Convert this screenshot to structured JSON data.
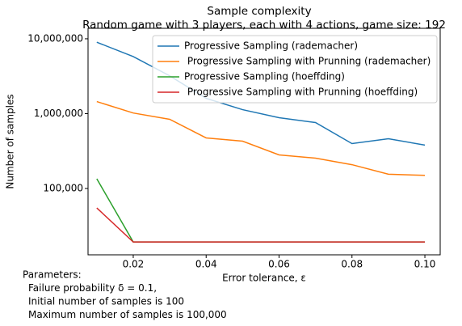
{
  "chart_data": {
    "type": "line",
    "title": "Sample complexity",
    "subtitle": "Random game with 3 players, each with 4 actions, game size: 192",
    "xlabel": "Error tolerance, ε",
    "ylabel": "Number of samples",
    "x": [
      0.01,
      0.02,
      0.03,
      0.04,
      0.05,
      0.06,
      0.07,
      0.08,
      0.09,
      0.1
    ],
    "series": [
      {
        "name": "Progressive Sampling (rademacher)",
        "color": "#1f77b4",
        "values": [
          9000000,
          5780000,
          3200000,
          1600000,
          1130000,
          883000,
          760000,
          398000,
          462000,
          380000
        ]
      },
      {
        "name": " Progressive Sampling with Prunning (rademacher)",
        "color": "#ff7f0e",
        "values": [
          1450000,
          1020000,
          840000,
          474000,
          429000,
          281000,
          254000,
          208000,
          155000,
          150000
        ]
      },
      {
        "name": "Progressive Sampling (hoeffding)",
        "color": "#2ca02c",
        "values": [
          135000,
          19300,
          19300,
          19300,
          19300,
          19300,
          19300,
          19300,
          19300,
          19300
        ]
      },
      {
        "name": " Progressive Sampling with Prunning (hoeffding)",
        "color": "#d62728",
        "values": [
          55000,
          19300,
          19300,
          19300,
          19300,
          19300,
          19300,
          19300,
          19300,
          19300
        ]
      }
    ],
    "xlim": [
      0.0076,
      0.1042
    ],
    "xticks": [
      0.02,
      0.04,
      0.06,
      0.08,
      {
        "value": 0.1,
        "label": "0.10"
      }
    ],
    "ylim": [
      13000,
      13800000
    ],
    "yticks": [
      {
        "value": 100000,
        "label": "100,000"
      },
      {
        "value": 1000000,
        "label": "1,000,000"
      },
      {
        "value": 10000000,
        "label": "10,000,000"
      }
    ],
    "log_y": true,
    "grid": false,
    "legend": "upper right",
    "annotation": [
      "Parameters:",
      "Failure probability δ = 0.1,",
      "Initial number of samples is 100",
      "Maximum number of samples is 100,000"
    ]
  }
}
